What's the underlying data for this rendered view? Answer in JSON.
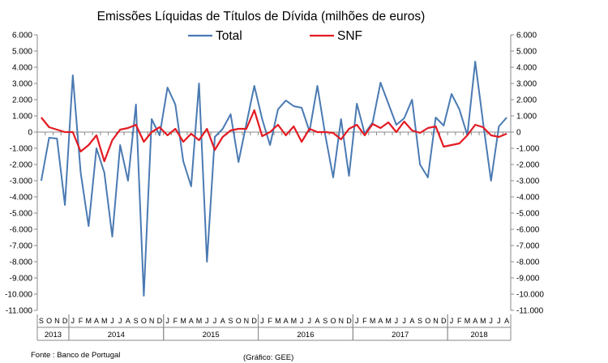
{
  "chart_data": {
    "type": "line",
    "title": "Emissões Líquidas de Títulos de Dívida (milhões de euros)",
    "ylim": [
      -11000,
      6000
    ],
    "ytick_labels": [
      "6.000",
      "5.000",
      "4.000",
      "3.000",
      "2.000",
      "1.000",
      "0",
      "-1.000",
      "-2.000",
      "-3.000",
      "-4.000",
      "-5.000",
      "-6.000",
      "-7.000",
      "-8.000",
      "-9.000",
      "-10.000",
      "-11.000"
    ],
    "month_labels": [
      "S",
      "O",
      "N",
      "D",
      "J",
      "F",
      "M",
      "A",
      "M",
      "J",
      "J",
      "A",
      "S",
      "O",
      "N",
      "D",
      "J",
      "F",
      "M",
      "A",
      "M",
      "J",
      "J",
      "A",
      "S",
      "O",
      "N",
      "D",
      "J",
      "F",
      "M",
      "A",
      "M",
      "J",
      "J",
      "A",
      "S",
      "O",
      "N",
      "D",
      "J",
      "F",
      "M",
      "A",
      "M",
      "J",
      "J",
      "A",
      "S",
      "O",
      "N",
      "D",
      "J",
      "F",
      "M",
      "A",
      "M",
      "J",
      "J",
      "A"
    ],
    "years": [
      {
        "label": "2013",
        "start": 0,
        "end": 4
      },
      {
        "label": "2014",
        "start": 4,
        "end": 16
      },
      {
        "label": "2015",
        "start": 16,
        "end": 28
      },
      {
        "label": "2016",
        "start": 28,
        "end": 40
      },
      {
        "label": "2017",
        "start": 40,
        "end": 52
      },
      {
        "label": "2018",
        "start": 52,
        "end": 60
      }
    ],
    "series": [
      {
        "name": "Total",
        "color": "#4a7ab2",
        "values": [
          -3000,
          -350,
          -400,
          -4500,
          3500,
          -2500,
          -5800,
          -1000,
          -2500,
          -6450,
          -800,
          -3000,
          1700,
          -10100,
          800,
          -200,
          2750,
          1700,
          -1800,
          -3350,
          3000,
          -8000,
          -300,
          200,
          1100,
          -1850,
          500,
          2850,
          800,
          -800,
          1400,
          1950,
          1600,
          1500,
          50,
          2850,
          -200,
          -2800,
          800,
          -2700,
          1750,
          -100,
          600,
          3050,
          1750,
          450,
          850,
          2000,
          -2000,
          -2800,
          900,
          400,
          2350,
          1400,
          -200,
          4350,
          600,
          -3000,
          350,
          900
        ]
      },
      {
        "name": "SNF",
        "color": "#e31b23",
        "values": [
          900,
          300,
          150,
          0,
          0,
          -1200,
          -800,
          -200,
          -1800,
          -500,
          150,
          250,
          450,
          -600,
          0,
          300,
          -200,
          200,
          -600,
          -100,
          -500,
          200,
          -1100,
          -300,
          100,
          200,
          200,
          1350,
          -250,
          0,
          450,
          -200,
          350,
          -600,
          200,
          0,
          0,
          -50,
          -450,
          200,
          450,
          -200,
          500,
          250,
          600,
          0,
          650,
          100,
          -50,
          250,
          350,
          -900,
          -800,
          -700,
          -200,
          450,
          300,
          -200,
          -300,
          -100
        ]
      }
    ]
  },
  "footer": {
    "source": "Fonte : Banco de Portugal",
    "credit": "(Gráfico: GEE)"
  }
}
